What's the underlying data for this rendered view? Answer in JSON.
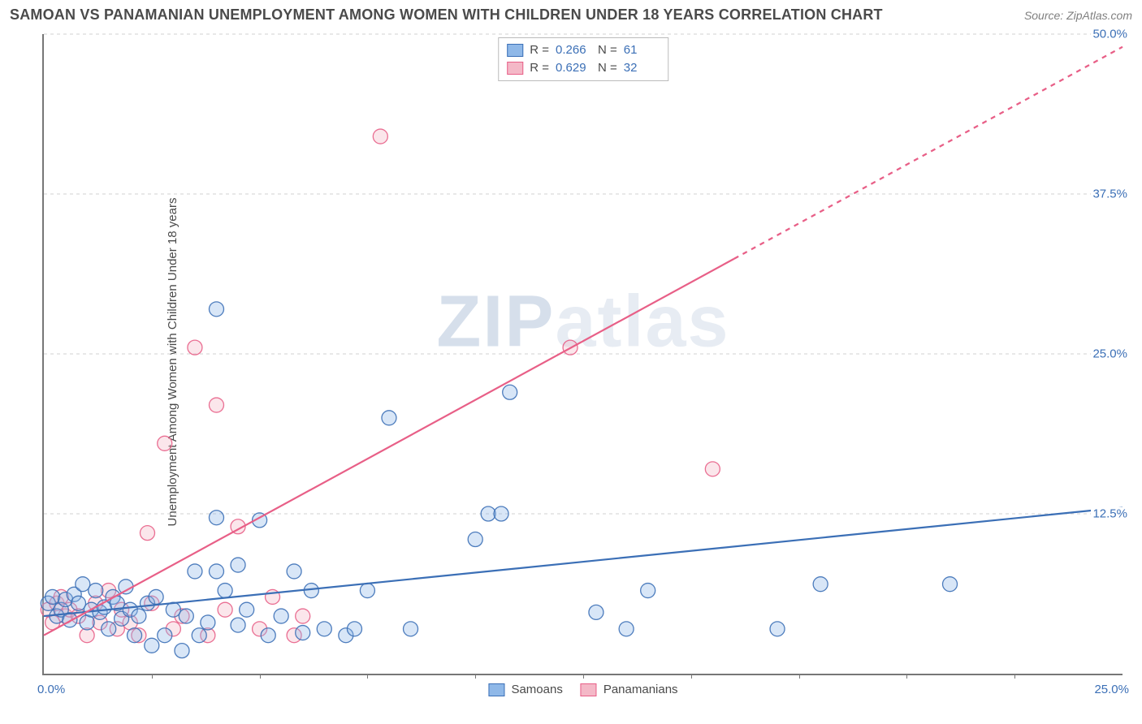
{
  "header": {
    "title": "SAMOAN VS PANAMANIAN UNEMPLOYMENT AMONG WOMEN WITH CHILDREN UNDER 18 YEARS CORRELATION CHART",
    "source": "Source: ZipAtlas.com"
  },
  "ylabel": "Unemployment Among Women with Children Under 18 years",
  "watermark": {
    "lead": "ZIP",
    "rest": "atlas"
  },
  "chart": {
    "type": "scatter",
    "background_color": "#ffffff",
    "grid_color": "#d0d0d0",
    "axis_color": "#777777",
    "tick_label_color": "#3b6fb6",
    "label_color": "#4a4a4a",
    "xlim": [
      0,
      25
    ],
    "ylim": [
      0,
      50
    ],
    "x_origin_label": "0.0%",
    "x_max_label": "25.0%",
    "xtick_positions": [
      2.5,
      5.0,
      7.5,
      10.0,
      12.5,
      15.0,
      17.5,
      20.0,
      22.5
    ],
    "yticks": [
      {
        "value": 12.5,
        "label": "12.5%"
      },
      {
        "value": 25.0,
        "label": "25.0%"
      },
      {
        "value": 37.5,
        "label": "37.5%"
      },
      {
        "value": 50.0,
        "label": "50.0%"
      }
    ],
    "marker_radius": 9,
    "marker_fill_opacity": 0.35,
    "marker_stroke_opacity": 0.9,
    "line_width": 2.2,
    "title_fontsize": 18,
    "label_fontsize": 15
  },
  "series": {
    "samoans": {
      "label": "Samoans",
      "R_label": "R =",
      "R_value": "0.266",
      "N_label": "N =",
      "N_value": "61",
      "color_fill": "#8fb8e8",
      "color_stroke": "#3b6fb6",
      "trend": {
        "x1": 0.0,
        "y1": 4.5,
        "x2": 25.0,
        "y2": 13.0,
        "solid_until_x": 25.0
      },
      "points": [
        [
          0.1,
          5.5
        ],
        [
          0.2,
          6.0
        ],
        [
          0.3,
          4.5
        ],
        [
          0.4,
          5.0
        ],
        [
          0.5,
          5.8
        ],
        [
          0.6,
          4.2
        ],
        [
          0.7,
          6.2
        ],
        [
          0.8,
          5.5
        ],
        [
          0.9,
          7.0
        ],
        [
          1.0,
          4.0
        ],
        [
          1.1,
          5.0
        ],
        [
          1.2,
          6.5
        ],
        [
          1.3,
          4.8
        ],
        [
          1.4,
          5.2
        ],
        [
          1.5,
          3.5
        ],
        [
          1.6,
          6.0
        ],
        [
          1.7,
          5.5
        ],
        [
          1.8,
          4.3
        ],
        [
          1.9,
          6.8
        ],
        [
          2.0,
          5.0
        ],
        [
          2.1,
          3.0
        ],
        [
          2.2,
          4.5
        ],
        [
          2.4,
          5.5
        ],
        [
          2.5,
          2.2
        ],
        [
          2.6,
          6.0
        ],
        [
          2.8,
          3.0
        ],
        [
          3.0,
          5.0
        ],
        [
          3.2,
          1.8
        ],
        [
          3.3,
          4.5
        ],
        [
          3.5,
          8.0
        ],
        [
          3.6,
          3.0
        ],
        [
          3.8,
          4.0
        ],
        [
          4.0,
          28.5
        ],
        [
          4.0,
          12.2
        ],
        [
          4.0,
          8.0
        ],
        [
          4.2,
          6.5
        ],
        [
          4.5,
          3.8
        ],
        [
          4.5,
          8.5
        ],
        [
          4.7,
          5.0
        ],
        [
          5.0,
          12.0
        ],
        [
          5.2,
          3.0
        ],
        [
          5.5,
          4.5
        ],
        [
          5.8,
          8.0
        ],
        [
          6.0,
          3.2
        ],
        [
          6.2,
          6.5
        ],
        [
          6.5,
          3.5
        ],
        [
          7.0,
          3.0
        ],
        [
          7.2,
          3.5
        ],
        [
          7.5,
          6.5
        ],
        [
          8.0,
          20.0
        ],
        [
          8.5,
          3.5
        ],
        [
          10.0,
          10.5
        ],
        [
          10.3,
          12.5
        ],
        [
          10.6,
          12.5
        ],
        [
          10.8,
          22.0
        ],
        [
          12.8,
          4.8
        ],
        [
          13.5,
          3.5
        ],
        [
          14.0,
          6.5
        ],
        [
          17.0,
          3.5
        ],
        [
          18.0,
          7.0
        ],
        [
          21.0,
          7.0
        ]
      ]
    },
    "panamanians": {
      "label": "Panamanians",
      "R_label": "R =",
      "R_value": "0.629",
      "N_label": "N =",
      "N_value": "32",
      "color_fill": "#f4b8c7",
      "color_stroke": "#e85f87",
      "trend": {
        "x1": 0.0,
        "y1": 3.0,
        "x2": 25.0,
        "y2": 49.0,
        "solid_until_x": 16.0
      },
      "points": [
        [
          0.1,
          5.0
        ],
        [
          0.2,
          4.0
        ],
        [
          0.3,
          5.5
        ],
        [
          0.4,
          6.0
        ],
        [
          0.5,
          4.5
        ],
        [
          0.6,
          5.0
        ],
        [
          0.8,
          4.5
        ],
        [
          1.0,
          3.0
        ],
        [
          1.2,
          5.5
        ],
        [
          1.3,
          4.0
        ],
        [
          1.5,
          6.5
        ],
        [
          1.7,
          3.5
        ],
        [
          1.8,
          5.0
        ],
        [
          2.0,
          4.0
        ],
        [
          2.2,
          3.0
        ],
        [
          2.4,
          11.0
        ],
        [
          2.5,
          5.5
        ],
        [
          2.8,
          18.0
        ],
        [
          3.0,
          3.5
        ],
        [
          3.2,
          4.5
        ],
        [
          3.5,
          25.5
        ],
        [
          3.8,
          3.0
        ],
        [
          4.0,
          21.0
        ],
        [
          4.2,
          5.0
        ],
        [
          4.5,
          11.5
        ],
        [
          5.0,
          3.5
        ],
        [
          5.3,
          6.0
        ],
        [
          5.8,
          3.0
        ],
        [
          6.0,
          4.5
        ],
        [
          7.8,
          42.0
        ],
        [
          12.2,
          25.5
        ],
        [
          15.5,
          16.0
        ]
      ]
    }
  }
}
